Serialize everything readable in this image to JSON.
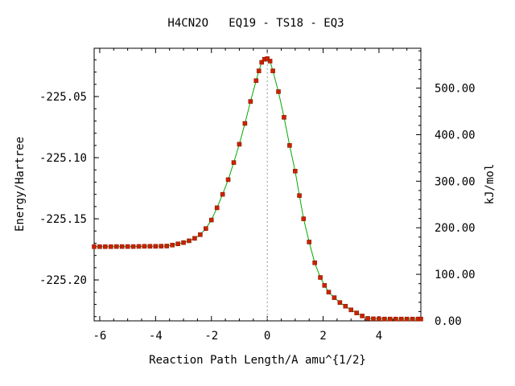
{
  "chart_data": {
    "type": "line",
    "title": "H4CN2O   EQ19 - TS18 - EQ3",
    "xlabel": "Reaction Path Length/A amu^{1/2}",
    "ylabel": "Energy/Hartree",
    "y2label": "kJ/mol",
    "xlim": [
      -6.2,
      5.5
    ],
    "ylim": [
      -225.2335,
      -225.0105
    ],
    "y2lim": [
      0,
      585.6
    ],
    "x_ticks": [
      -6,
      -4,
      -2,
      0,
      2,
      4
    ],
    "x_tick_labels": [
      "-6",
      "-4",
      "-2",
      "0",
      "2",
      "4"
    ],
    "y_ticks": [
      -225.05,
      -225.1,
      -225.15,
      -225.2
    ],
    "y_tick_labels": [
      "-225.05",
      "-225.10",
      "-225.15",
      "-225.20"
    ],
    "y2_ticks": [
      0,
      100,
      200,
      300,
      400,
      500
    ],
    "y2_tick_labels": [
      "0.00",
      "100.00",
      "200.00",
      "300.00",
      "400.00",
      "500.00"
    ],
    "ts_marker_x": 0,
    "grid": false,
    "line_color": "#00aa00",
    "marker_color": "#cc2200",
    "marker_edge_color": "#8a1a00",
    "series": [
      {
        "points": [
          [
            -6.2,
            -225.1728
          ],
          [
            -6.0,
            -225.1728
          ],
          [
            -5.8,
            -225.1728
          ],
          [
            -5.6,
            -225.1728
          ],
          [
            -5.4,
            -225.1727
          ],
          [
            -5.2,
            -225.1727
          ],
          [
            -5.0,
            -225.1727
          ],
          [
            -4.8,
            -225.1727
          ],
          [
            -4.6,
            -225.1726
          ],
          [
            -4.4,
            -225.1725
          ],
          [
            -4.2,
            -225.1725
          ],
          [
            -4.0,
            -225.1725
          ],
          [
            -3.8,
            -225.1724
          ],
          [
            -3.6,
            -225.1723
          ],
          [
            -3.4,
            -225.1715
          ],
          [
            -3.2,
            -225.1705
          ],
          [
            -3.0,
            -225.1695
          ],
          [
            -2.8,
            -225.168
          ],
          [
            -2.6,
            -225.166
          ],
          [
            -2.4,
            -225.163
          ],
          [
            -2.2,
            -225.158
          ],
          [
            -2.0,
            -225.151
          ],
          [
            -1.8,
            -225.141
          ],
          [
            -1.6,
            -225.13
          ],
          [
            -1.4,
            -225.118
          ],
          [
            -1.2,
            -225.104
          ],
          [
            -1.0,
            -225.089
          ],
          [
            -0.8,
            -225.072
          ],
          [
            -0.6,
            -225.054
          ],
          [
            -0.4,
            -225.037
          ],
          [
            -0.3,
            -225.029
          ],
          [
            -0.2,
            -225.022
          ],
          [
            -0.1,
            -225.0195
          ],
          [
            0.0,
            -225.019
          ],
          [
            0.1,
            -225.021
          ],
          [
            0.2,
            -225.029
          ],
          [
            0.4,
            -225.046
          ],
          [
            0.6,
            -225.067
          ],
          [
            0.8,
            -225.09
          ],
          [
            1.0,
            -225.111
          ],
          [
            1.15,
            -225.131
          ],
          [
            1.3,
            -225.15
          ],
          [
            1.5,
            -225.169
          ],
          [
            1.7,
            -225.186
          ],
          [
            1.9,
            -225.198
          ],
          [
            2.05,
            -225.2045
          ],
          [
            2.2,
            -225.21
          ],
          [
            2.4,
            -225.2145
          ],
          [
            2.6,
            -225.2185
          ],
          [
            2.8,
            -225.2215
          ],
          [
            3.0,
            -225.2245
          ],
          [
            3.2,
            -225.227
          ],
          [
            3.4,
            -225.2295
          ],
          [
            3.6,
            -225.2315
          ],
          [
            3.8,
            -225.2318
          ],
          [
            4.0,
            -225.2318
          ],
          [
            4.2,
            -225.232
          ],
          [
            4.4,
            -225.232
          ],
          [
            4.6,
            -225.232
          ],
          [
            4.8,
            -225.232
          ],
          [
            5.0,
            -225.232
          ],
          [
            5.2,
            -225.232
          ],
          [
            5.4,
            -225.232
          ],
          [
            5.5,
            -225.232
          ]
        ]
      }
    ]
  }
}
